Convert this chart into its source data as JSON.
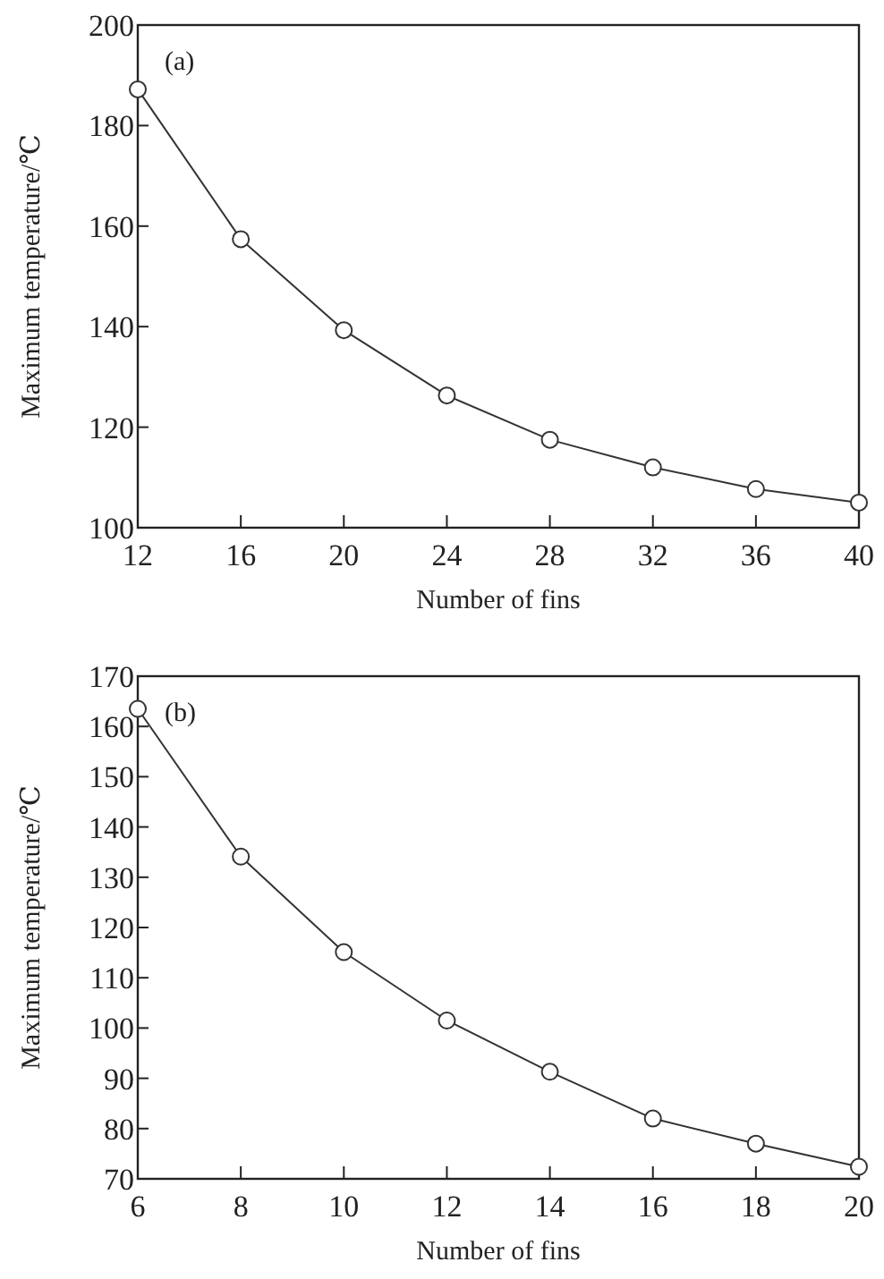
{
  "chart_data": [
    {
      "type": "line",
      "annotations": [
        "(a)"
      ],
      "xlabel": "Number of fins",
      "ylabel": "Maximum temperature/℃",
      "x": [
        12,
        16,
        20,
        24,
        28,
        32,
        36,
        40
      ],
      "series": [
        {
          "color": "#333333",
          "values": [
            187.2,
            157.4,
            139.3,
            126.3,
            117.5,
            112.0,
            107.7,
            105.0
          ]
        }
      ],
      "xlim": [
        12,
        40
      ],
      "xticks": [
        12,
        16,
        20,
        24,
        28,
        32,
        36,
        40
      ],
      "ylim": [
        100,
        200
      ],
      "yticks": [
        100,
        120,
        140,
        160,
        180,
        200
      ],
      "marker": "circle",
      "line_style": "solid",
      "grid": false
    },
    {
      "type": "line",
      "annotations": [
        "(b)"
      ],
      "xlabel": "Number of fins",
      "ylabel": "Maximum temperature/℃",
      "x": [
        6,
        8,
        10,
        12,
        14,
        16,
        18,
        20
      ],
      "series": [
        {
          "color": "#333333",
          "values": [
            163.5,
            134.1,
            115.1,
            101.5,
            91.3,
            82.0,
            77.0,
            72.4
          ]
        }
      ],
      "xlim": [
        6,
        20
      ],
      "xticks": [
        6,
        8,
        10,
        12,
        14,
        16,
        18,
        20
      ],
      "ylim": [
        70,
        170
      ],
      "yticks": [
        70,
        80,
        90,
        100,
        110,
        120,
        130,
        140,
        150,
        160,
        170
      ],
      "marker": "circle",
      "line_style": "solid",
      "grid": false
    }
  ]
}
